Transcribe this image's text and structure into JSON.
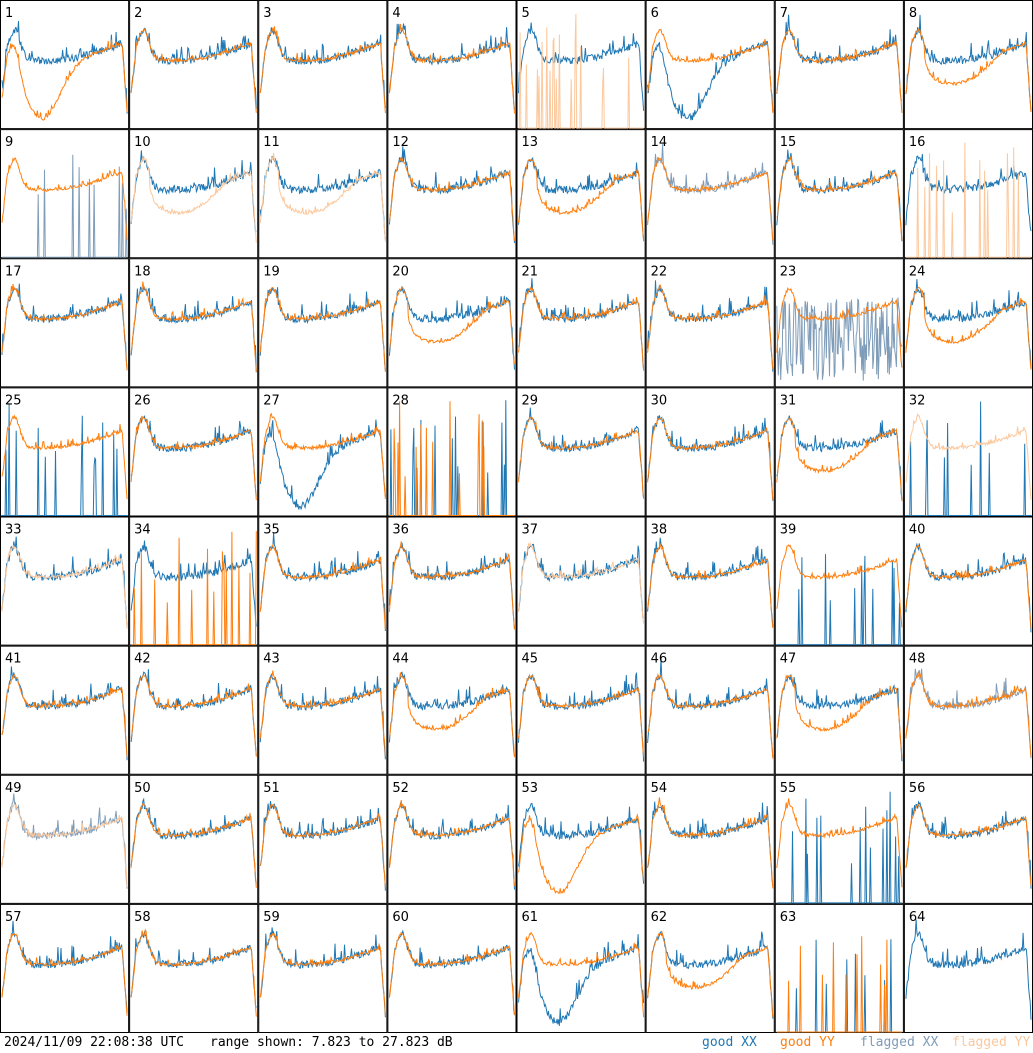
{
  "chart_data": {
    "type": "line",
    "layout": "small-multiples-8x8",
    "panels": [
      1,
      2,
      3,
      4,
      5,
      6,
      7,
      8,
      9,
      10,
      11,
      12,
      13,
      14,
      15,
      16,
      17,
      18,
      19,
      20,
      21,
      22,
      23,
      24,
      25,
      26,
      27,
      28,
      29,
      30,
      31,
      32,
      33,
      34,
      35,
      36,
      37,
      38,
      39,
      40,
      41,
      42,
      43,
      44,
      45,
      46,
      47,
      48,
      49,
      50,
      51,
      52,
      53,
      54,
      55,
      56,
      57,
      58,
      59,
      60,
      61,
      62,
      63,
      64
    ],
    "y_range_db": [
      7.823,
      27.823
    ],
    "series": [
      "good XX",
      "good YY",
      "flagged XX",
      "flagged YY"
    ],
    "flags": {
      "flagged_xx": [
        9,
        14,
        23,
        48,
        49
      ],
      "flagged_yy": [
        5,
        10,
        11,
        16,
        32,
        33,
        37,
        49
      ]
    },
    "patterns": {
      "1": {
        "xx": "normal",
        "yy": "deep-dip"
      },
      "5": {
        "xx": "normal",
        "yy": "spiky"
      },
      "6": {
        "xx": "deep-dip",
        "yy": "normal"
      },
      "8": {
        "xx": "normal",
        "yy": "dip"
      },
      "9": {
        "xx": "spiky",
        "yy": "normal"
      },
      "10": {
        "xx": "normal",
        "yy": "dip"
      },
      "11": {
        "xx": "normal",
        "yy": "dip"
      },
      "13": {
        "xx": "normal",
        "yy": "dip"
      },
      "16": {
        "xx": "normal",
        "yy": "spiky"
      },
      "20": {
        "xx": "normal",
        "yy": "dip"
      },
      "23": {
        "xx": "noisy",
        "yy": "normal"
      },
      "24": {
        "xx": "normal",
        "yy": "dip"
      },
      "25": {
        "xx": "spiky",
        "yy": "normal"
      },
      "27": {
        "xx": "deep-dip",
        "yy": "normal"
      },
      "28": {
        "xx": "spiky",
        "yy": "spiky"
      },
      "31": {
        "xx": "normal",
        "yy": "dip"
      },
      "32": {
        "xx": "spiky",
        "yy": "normal"
      },
      "34": {
        "xx": "normal",
        "yy": "spiky"
      },
      "39": {
        "xx": "spiky",
        "yy": "normal"
      },
      "44": {
        "xx": "normal",
        "yy": "dip"
      },
      "47": {
        "xx": "normal",
        "yy": "dip"
      },
      "53": {
        "xx": "normal",
        "yy": "deep-dip"
      },
      "55": {
        "xx": "spiky",
        "yy": "normal"
      },
      "61": {
        "xx": "deep-dip",
        "yy": "normal"
      },
      "62": {
        "xx": "normal",
        "yy": "dip"
      },
      "63": {
        "xx": "spiky",
        "yy": "spiky"
      },
      "64": {
        "xx": "normal",
        "yy": "none"
      }
    }
  },
  "footer": {
    "timestamp": "2024/11/09 22:08:38 UTC",
    "range_text": "range shown: 7.823 to 27.823 dB",
    "legend": {
      "good_xx": "good XX",
      "good_yy": "good YY",
      "flagged_xx": "flagged XX",
      "flagged_yy": "flagged YY"
    }
  },
  "colors": {
    "good_xx": "#1f77b4",
    "good_yy": "#ff7f0e",
    "flagged_xx": "#7f9cb8",
    "flagged_yy": "#fcc89c"
  }
}
